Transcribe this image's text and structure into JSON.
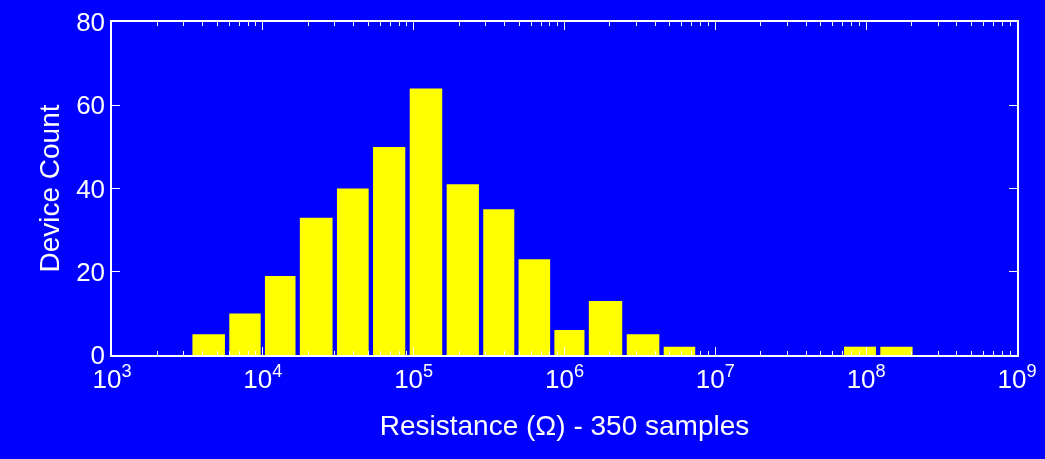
{
  "chart_data": {
    "type": "histogram",
    "xlabel": "Resistance (Ω) - 350 samples",
    "ylabel": "Device Count",
    "log": "x",
    "color": "#ffff00",
    "bins": [
      3300,
      5800,
      10000,
      17000,
      30000,
      52000,
      91000,
      160000,
      280000,
      480000,
      830000,
      1400000,
      2500000,
      4400000,
      7600000,
      69000000,
      120000000,
      210000000
    ],
    "values": [
      5,
      10,
      19,
      33,
      40,
      50,
      64,
      41,
      35,
      23,
      6,
      13,
      5,
      2,
      0,
      2,
      2
    ],
    "xlim": [
      1000,
      1000000000
    ],
    "xticks": [
      {
        "value": 1000,
        "label": "10$^{3}$"
      },
      {
        "value": 10000,
        "label": "10$^{4}$"
      },
      {
        "value": 100000,
        "label": "10$^{5}$"
      },
      {
        "value": 1000000,
        "label": "10$^{6}$"
      },
      {
        "value": 10000000,
        "label": "10$^{7}$"
      },
      {
        "value": 100000000,
        "label": "10$^{8}$"
      },
      {
        "value": 1000000000,
        "label": "10$^{9}$"
      }
    ],
    "ylim": [
      0,
      80
    ],
    "yticks": [
      0,
      20,
      40,
      60,
      80
    ],
    "grid": false
  }
}
